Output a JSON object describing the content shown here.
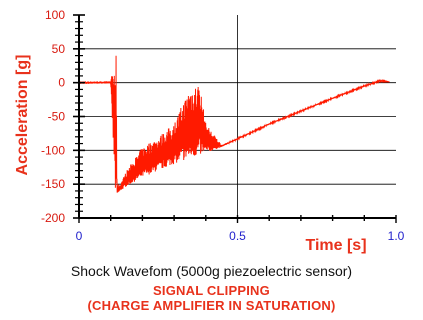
{
  "chart_data": {
    "type": "line",
    "ylabel": "Acceleration [g]",
    "xlabel": "Time [s]",
    "xlim": [
      0,
      1.0
    ],
    "ylim": [
      -200,
      100
    ],
    "x_ticks": [
      "0",
      "0.5",
      "1.0"
    ],
    "y_ticks": [
      "100",
      "50",
      "0",
      "-50",
      "-100",
      "-150",
      "-200"
    ],
    "grid": true,
    "series": [
      {
        "color": "#ff1a00",
        "envelope": {
          "x": [
            0.0,
            0.1,
            0.115,
            0.117,
            0.12,
            0.13,
            0.15,
            0.2,
            0.25,
            0.3,
            0.35,
            0.38,
            0.4,
            0.45,
            0.5,
            0.6,
            0.7,
            0.8,
            0.9,
            0.95,
            0.98
          ],
          "lower": [
            -2,
            -1,
            -168,
            -170,
            -165,
            -160,
            -153,
            -140,
            -130,
            -120,
            -112,
            -108,
            -104,
            -95,
            -84,
            -62,
            -43,
            -24,
            -6,
            2,
            1
          ],
          "upper": [
            2,
            2,
            45,
            40,
            -150,
            -150,
            -130,
            -95,
            -80,
            -60,
            -5,
            0,
            -60,
            -92,
            -82,
            -60,
            -41,
            -22,
            -4,
            4,
            1
          ]
        }
      }
    ]
  },
  "caption": {
    "main": "Shock Wavefom (5000g piezoelectric sensor)",
    "note_line1": "SIGNAL CLIPPING",
    "note_line2": "(CHARGE AMPLIFIER IN SATURATION)"
  }
}
